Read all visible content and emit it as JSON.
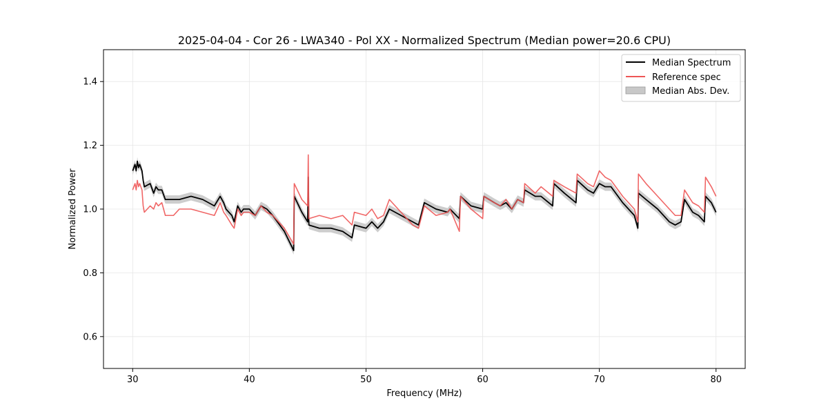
{
  "chart_data": {
    "type": "line",
    "title": "2025-04-04 - Cor 26 - LWA340 - Pol XX - Normalized Spectrum (Median power=20.6 CPU)",
    "xlabel": "Frequency (MHz)",
    "ylabel": "Normalized Power",
    "xlim": [
      27.5,
      82.5
    ],
    "ylim": [
      0.5,
      1.5
    ],
    "xticks": [
      30,
      40,
      50,
      60,
      70,
      80
    ],
    "xtick_labels": [
      "30",
      "40",
      "50",
      "60",
      "70",
      "80"
    ],
    "yticks": [
      0.6,
      0.8,
      1.0,
      1.2,
      1.4
    ],
    "ytick_labels": [
      "0.6",
      "0.8",
      "1.0",
      "1.2",
      "1.4"
    ],
    "grid": true,
    "legend_position": "top-right",
    "series": [
      {
        "name": "Median Spectrum",
        "color": "#000000",
        "x": [
          30.0,
          30.2,
          30.3,
          30.4,
          30.5,
          30.6,
          30.8,
          30.9,
          31.0,
          31.5,
          31.8,
          32.0,
          32.2,
          32.5,
          32.8,
          33.5,
          34.0,
          35.0,
          36.0,
          37.0,
          37.5,
          37.8,
          38.0,
          38.5,
          38.7,
          39.0,
          39.3,
          39.5,
          40.0,
          40.5,
          41.0,
          41.5,
          42.0,
          43.0,
          43.8,
          43.85,
          44.5,
          45.0,
          45.05,
          45.1,
          46.0,
          47.0,
          48.0,
          48.8,
          49.0,
          50.0,
          50.5,
          51.0,
          51.5,
          52.0,
          53.0,
          54.0,
          54.5,
          55.0,
          56.0,
          57.0,
          57.2,
          58.0,
          58.1,
          59.0,
          60.0,
          60.1,
          61.0,
          61.5,
          62.0,
          62.5,
          63.0,
          63.5,
          63.6,
          64.5,
          65.0,
          66.0,
          66.1,
          67.0,
          68.0,
          68.1,
          69.0,
          69.5,
          70.0,
          70.5,
          71.0,
          72.0,
          73.0,
          73.3,
          73.35,
          74.0,
          75.0,
          76.0,
          76.5,
          77.0,
          77.3,
          78.0,
          78.5,
          79.0,
          79.1,
          79.6,
          80.0
        ],
        "y": [
          1.12,
          1.14,
          1.12,
          1.15,
          1.13,
          1.14,
          1.12,
          1.09,
          1.07,
          1.08,
          1.05,
          1.07,
          1.06,
          1.06,
          1.03,
          1.03,
          1.03,
          1.04,
          1.03,
          1.01,
          1.04,
          1.02,
          1.0,
          0.98,
          0.96,
          1.01,
          0.99,
          1.0,
          1.0,
          0.98,
          1.01,
          1.0,
          0.98,
          0.93,
          0.87,
          1.04,
          0.99,
          0.96,
          1.1,
          0.95,
          0.94,
          0.94,
          0.93,
          0.91,
          0.95,
          0.94,
          0.96,
          0.94,
          0.96,
          1.0,
          0.98,
          0.96,
          0.95,
          1.02,
          1.0,
          0.99,
          1.0,
          0.97,
          1.04,
          1.01,
          1.0,
          1.04,
          1.02,
          1.01,
          1.02,
          1.0,
          1.03,
          1.02,
          1.06,
          1.04,
          1.04,
          1.01,
          1.08,
          1.05,
          1.02,
          1.09,
          1.06,
          1.05,
          1.08,
          1.07,
          1.07,
          1.02,
          0.98,
          0.94,
          1.05,
          1.03,
          1.0,
          0.96,
          0.95,
          0.96,
          1.03,
          0.99,
          0.98,
          0.96,
          1.04,
          1.02,
          0.99
        ],
        "mad": 0.013
      },
      {
        "name": "Reference spec",
        "color": "#ee5555",
        "x": [
          30.0,
          30.2,
          30.3,
          30.4,
          30.5,
          30.6,
          30.8,
          30.9,
          31.0,
          31.5,
          31.8,
          32.0,
          32.2,
          32.5,
          32.8,
          33.5,
          34.0,
          35.0,
          36.0,
          37.0,
          37.5,
          37.8,
          38.0,
          38.5,
          38.7,
          39.0,
          39.3,
          39.5,
          40.0,
          40.5,
          41.0,
          41.5,
          42.0,
          43.0,
          43.8,
          43.85,
          44.5,
          45.0,
          45.05,
          45.1,
          46.0,
          47.0,
          48.0,
          48.8,
          49.0,
          50.0,
          50.5,
          51.0,
          51.5,
          52.0,
          53.0,
          54.0,
          54.5,
          55.0,
          56.0,
          57.0,
          57.2,
          58.0,
          58.1,
          59.0,
          60.0,
          60.1,
          61.0,
          61.5,
          62.0,
          62.5,
          63.0,
          63.5,
          63.6,
          64.5,
          65.0,
          66.0,
          66.1,
          67.0,
          68.0,
          68.1,
          69.0,
          69.5,
          70.0,
          70.5,
          71.0,
          72.0,
          73.0,
          73.3,
          73.35,
          74.0,
          75.0,
          76.0,
          76.5,
          77.0,
          77.3,
          78.0,
          78.5,
          79.0,
          79.1,
          79.6,
          80.0
        ],
        "y": [
          1.06,
          1.08,
          1.06,
          1.09,
          1.07,
          1.08,
          1.06,
          1.01,
          0.99,
          1.01,
          1.0,
          1.02,
          1.01,
          1.02,
          0.98,
          0.98,
          1.0,
          1.0,
          0.99,
          0.98,
          1.02,
          0.99,
          0.98,
          0.95,
          0.94,
          1.0,
          0.98,
          0.99,
          0.99,
          0.98,
          1.01,
          0.99,
          0.98,
          0.94,
          0.89,
          1.08,
          1.03,
          1.01,
          1.17,
          0.97,
          0.98,
          0.97,
          0.98,
          0.95,
          0.99,
          0.98,
          1.0,
          0.97,
          0.98,
          1.03,
          0.99,
          0.95,
          0.94,
          1.01,
          0.98,
          0.99,
          1.0,
          0.93,
          1.04,
          1.0,
          0.97,
          1.04,
          1.02,
          1.01,
          1.03,
          1.0,
          1.03,
          1.02,
          1.08,
          1.05,
          1.07,
          1.04,
          1.09,
          1.07,
          1.05,
          1.11,
          1.08,
          1.07,
          1.12,
          1.1,
          1.09,
          1.04,
          1.0,
          0.96,
          1.11,
          1.08,
          1.04,
          1.0,
          0.98,
          0.98,
          1.06,
          1.02,
          1.01,
          0.99,
          1.1,
          1.07,
          1.04
        ]
      }
    ],
    "fill_series": {
      "name": "Median Abs. Dev.",
      "color": "#aaaaaa"
    }
  }
}
